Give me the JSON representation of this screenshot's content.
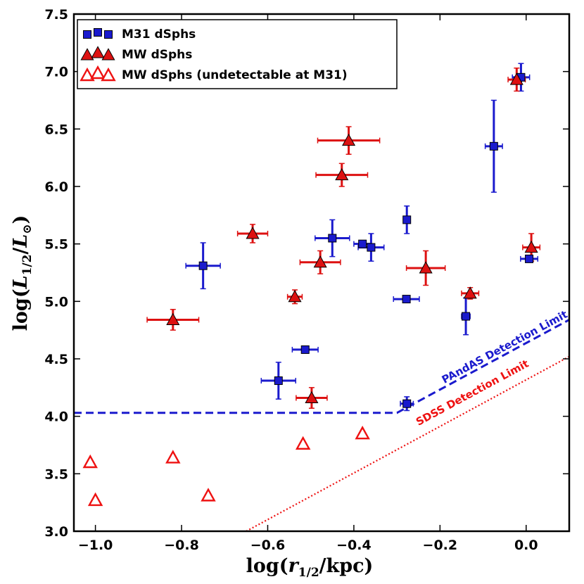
{
  "chart_data": {
    "type": "scatter",
    "xlabel": "log(r1/2/kpc)",
    "ylabel": "log(L1/2/L⊙)",
    "xlim": [
      -1.05,
      0.1
    ],
    "ylim": [
      3.0,
      7.5
    ],
    "xticks": [
      "−1.0",
      "−0.8",
      "−0.6",
      "−0.4",
      "−0.2",
      "0.0"
    ],
    "xtick_values": [
      -1.0,
      -0.8,
      -0.6,
      -0.4,
      -0.2,
      0.0
    ],
    "yticks": [
      "3.0",
      "3.5",
      "4.0",
      "4.5",
      "5.0",
      "5.5",
      "6.0",
      "6.5",
      "7.0",
      "7.5"
    ],
    "ytick_values": [
      3.0,
      3.5,
      4.0,
      4.5,
      5.0,
      5.5,
      6.0,
      6.5,
      7.0,
      7.5
    ],
    "grid": false,
    "legend_position": "top-left",
    "series": [
      {
        "name": "M31 dSphs",
        "marker": "square",
        "color": "#1a1acd",
        "points": [
          {
            "x": -0.75,
            "y": 5.31,
            "xerr": 0.04,
            "yerr": 0.2
          },
          {
            "x": -0.575,
            "y": 4.31,
            "xerr": 0.04,
            "yerr": 0.16
          },
          {
            "x": -0.513,
            "y": 4.58,
            "xerr": 0.03,
            "yerr": 0.0
          },
          {
            "x": -0.45,
            "y": 5.55,
            "xerr": 0.04,
            "yerr": 0.16
          },
          {
            "x": -0.38,
            "y": 5.5,
            "xerr": 0.02,
            "yerr": 0.0
          },
          {
            "x": -0.36,
            "y": 5.47,
            "xerr": 0.03,
            "yerr": 0.12
          },
          {
            "x": -0.277,
            "y": 5.71,
            "xerr": 0.0,
            "yerr": 0.12
          },
          {
            "x": -0.278,
            "y": 5.02,
            "xerr": 0.03,
            "yerr": 0.0
          },
          {
            "x": -0.277,
            "y": 4.11,
            "xerr": 0.015,
            "yerr": 0.06
          },
          {
            "x": -0.14,
            "y": 4.87,
            "xerr": 0.01,
            "yerr": 0.16
          },
          {
            "x": -0.075,
            "y": 6.35,
            "xerr": 0.02,
            "yerr": 0.4
          },
          {
            "x": -0.012,
            "y": 6.95,
            "xerr": 0.02,
            "yerr": 0.12
          },
          {
            "x": 0.007,
            "y": 5.37,
            "xerr": 0.02,
            "yerr": 0.0
          }
        ]
      },
      {
        "name": "MW dSphs",
        "marker": "triangle",
        "color": "#dd1111",
        "points": [
          {
            "x": -0.82,
            "y": 4.84,
            "xerr": 0.06,
            "yerr": 0.09
          },
          {
            "x": -0.635,
            "y": 5.59,
            "xerr": 0.035,
            "yerr": 0.08
          },
          {
            "x": -0.537,
            "y": 5.04,
            "xerr": 0.017,
            "yerr": 0.06
          },
          {
            "x": -0.498,
            "y": 4.16,
            "xerr": 0.036,
            "yerr": 0.09
          },
          {
            "x": -0.478,
            "y": 5.34,
            "xerr": 0.047,
            "yerr": 0.1
          },
          {
            "x": -0.428,
            "y": 6.1,
            "xerr": 0.06,
            "yerr": 0.1
          },
          {
            "x": -0.412,
            "y": 6.4,
            "xerr": 0.072,
            "yerr": 0.12
          },
          {
            "x": -0.233,
            "y": 5.29,
            "xerr": 0.045,
            "yerr": 0.15
          },
          {
            "x": -0.13,
            "y": 5.07,
            "xerr": 0.02,
            "yerr": 0.05
          },
          {
            "x": -0.022,
            "y": 6.93,
            "xerr": 0.02,
            "yerr": 0.1
          },
          {
            "x": 0.012,
            "y": 5.47,
            "xerr": 0.02,
            "yerr": 0.12
          }
        ]
      },
      {
        "name": "MW dSphs (undetectable at M31)",
        "marker": "triangle-open",
        "color": "#ee1111",
        "points": [
          {
            "x": -1.012,
            "y": 3.6
          },
          {
            "x": -1.0,
            "y": 3.27
          },
          {
            "x": -0.82,
            "y": 3.64
          },
          {
            "x": -0.738,
            "y": 3.31
          },
          {
            "x": -0.518,
            "y": 3.76
          },
          {
            "x": -0.38,
            "y": 3.85
          }
        ]
      }
    ],
    "lines": [
      {
        "name": "PAndAS Detection Limit",
        "label": "PAndAS Detection Limit",
        "style": "dashed",
        "color": "#1a1acd",
        "points": [
          [
            -1.05,
            4.03
          ],
          [
            -0.3,
            4.03
          ],
          [
            0.1,
            4.84
          ]
        ]
      },
      {
        "name": "SDSS Detection Limit",
        "label": "SDSS Detection Limit",
        "style": "dotted",
        "color": "#ee1111",
        "points": [
          [
            -0.65,
            3.0
          ],
          [
            0.1,
            4.52
          ]
        ]
      }
    ]
  }
}
